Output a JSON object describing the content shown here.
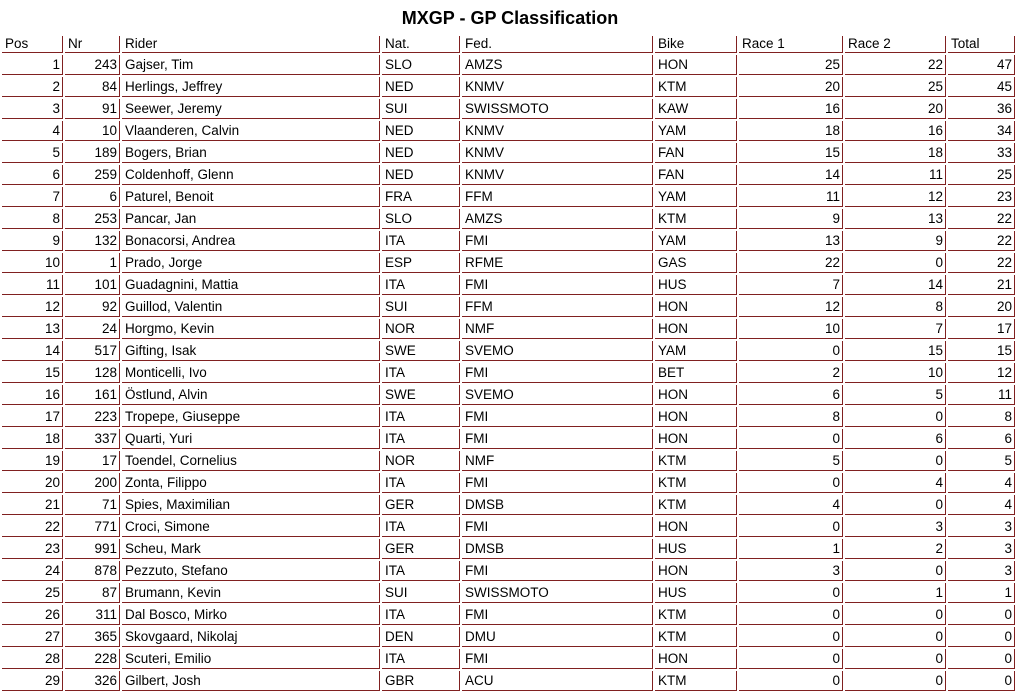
{
  "title": "MXGP - GP Classification",
  "colors": {
    "border": "#802020",
    "text": "#000000",
    "background": "#FFFFFF"
  },
  "table": {
    "columns": [
      {
        "key": "pos",
        "label": "Pos",
        "align": "right"
      },
      {
        "key": "nr",
        "label": "Nr",
        "align": "right"
      },
      {
        "key": "rider",
        "label": "Rider",
        "align": "left"
      },
      {
        "key": "nat",
        "label": "Nat.",
        "align": "left"
      },
      {
        "key": "fed",
        "label": "Fed.",
        "align": "left"
      },
      {
        "key": "bike",
        "label": "Bike",
        "align": "left"
      },
      {
        "key": "race1",
        "label": "Race 1",
        "align": "right"
      },
      {
        "key": "race2",
        "label": "Race 2",
        "align": "right"
      },
      {
        "key": "total",
        "label": "Total",
        "align": "right"
      }
    ],
    "rows": [
      [
        1,
        243,
        "Gajser, Tim",
        "SLO",
        "AMZS",
        "HON",
        25,
        22,
        47
      ],
      [
        2,
        84,
        "Herlings, Jeffrey",
        "NED",
        "KNMV",
        "KTM",
        20,
        25,
        45
      ],
      [
        3,
        91,
        "Seewer, Jeremy",
        "SUI",
        "SWISSMOTO",
        "KAW",
        16,
        20,
        36
      ],
      [
        4,
        10,
        "Vlaanderen, Calvin",
        "NED",
        "KNMV",
        "YAM",
        18,
        16,
        34
      ],
      [
        5,
        189,
        "Bogers, Brian",
        "NED",
        "KNMV",
        "FAN",
        15,
        18,
        33
      ],
      [
        6,
        259,
        "Coldenhoff, Glenn",
        "NED",
        "KNMV",
        "FAN",
        14,
        11,
        25
      ],
      [
        7,
        6,
        "Paturel, Benoit",
        "FRA",
        "FFM",
        "YAM",
        11,
        12,
        23
      ],
      [
        8,
        253,
        "Pancar, Jan",
        "SLO",
        "AMZS",
        "KTM",
        9,
        13,
        22
      ],
      [
        9,
        132,
        "Bonacorsi, Andrea",
        "ITA",
        "FMI",
        "YAM",
        13,
        9,
        22
      ],
      [
        10,
        1,
        "Prado, Jorge",
        "ESP",
        "RFME",
        "GAS",
        22,
        0,
        22
      ],
      [
        11,
        101,
        "Guadagnini, Mattia",
        "ITA",
        "FMI",
        "HUS",
        7,
        14,
        21
      ],
      [
        12,
        92,
        "Guillod, Valentin",
        "SUI",
        "FFM",
        "HON",
        12,
        8,
        20
      ],
      [
        13,
        24,
        "Horgmo, Kevin",
        "NOR",
        "NMF",
        "HON",
        10,
        7,
        17
      ],
      [
        14,
        517,
        "Gifting, Isak",
        "SWE",
        "SVEMO",
        "YAM",
        0,
        15,
        15
      ],
      [
        15,
        128,
        "Monticelli, Ivo",
        "ITA",
        "FMI",
        "BET",
        2,
        10,
        12
      ],
      [
        16,
        161,
        "Östlund, Alvin",
        "SWE",
        "SVEMO",
        "HON",
        6,
        5,
        11
      ],
      [
        17,
        223,
        "Tropepe, Giuseppe",
        "ITA",
        "FMI",
        "HON",
        8,
        0,
        8
      ],
      [
        18,
        337,
        "Quarti, Yuri",
        "ITA",
        "FMI",
        "HON",
        0,
        6,
        6
      ],
      [
        19,
        17,
        "Toendel, Cornelius",
        "NOR",
        "NMF",
        "KTM",
        5,
        0,
        5
      ],
      [
        20,
        200,
        "Zonta, Filippo",
        "ITA",
        "FMI",
        "KTM",
        0,
        4,
        4
      ],
      [
        21,
        71,
        "Spies, Maximilian",
        "GER",
        "DMSB",
        "KTM",
        4,
        0,
        4
      ],
      [
        22,
        771,
        "Croci, Simone",
        "ITA",
        "FMI",
        "HON",
        0,
        3,
        3
      ],
      [
        23,
        991,
        "Scheu, Mark",
        "GER",
        "DMSB",
        "HUS",
        1,
        2,
        3
      ],
      [
        24,
        878,
        "Pezzuto, Stefano",
        "ITA",
        "FMI",
        "HON",
        3,
        0,
        3
      ],
      [
        25,
        87,
        "Brumann, Kevin",
        "SUI",
        "SWISSMOTO",
        "HUS",
        0,
        1,
        1
      ],
      [
        26,
        311,
        "Dal Bosco, Mirko",
        "ITA",
        "FMI",
        "KTM",
        0,
        0,
        0
      ],
      [
        27,
        365,
        "Skovgaard, Nikolaj",
        "DEN",
        "DMU",
        "KTM",
        0,
        0,
        0
      ],
      [
        28,
        228,
        "Scuteri, Emilio",
        "ITA",
        "FMI",
        "HON",
        0,
        0,
        0
      ],
      [
        29,
        326,
        "Gilbert, Josh",
        "GBR",
        "ACU",
        "KTM",
        0,
        0,
        0
      ]
    ]
  }
}
